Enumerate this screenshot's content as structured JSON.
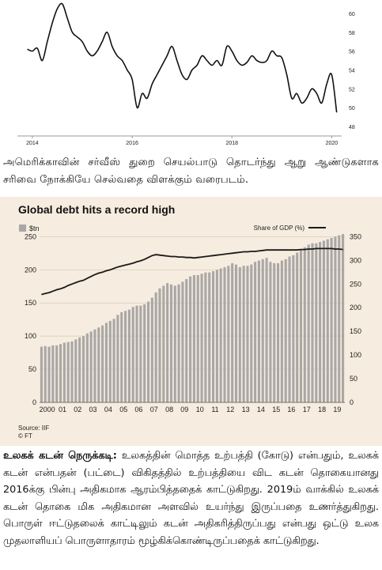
{
  "chart_data": [
    {
      "type": "line",
      "title": "",
      "x_ticks": [
        "2014",
        "2016",
        "2018",
        "2020"
      ],
      "y_ticks": [
        48,
        50,
        52,
        54,
        56,
        58,
        60
      ],
      "ylim": [
        47,
        61
      ],
      "xlim": [
        2013.7,
        2020.2
      ],
      "series": [
        {
          "name": "",
          "x": [
            2013.9,
            2014.0,
            2014.1,
            2014.2,
            2014.3,
            2014.4,
            2014.5,
            2014.6,
            2014.7,
            2014.8,
            2014.9,
            2015.0,
            2015.1,
            2015.2,
            2015.3,
            2015.4,
            2015.5,
            2015.6,
            2015.7,
            2015.8,
            2015.9,
            2016.0,
            2016.1,
            2016.2,
            2016.3,
            2016.4,
            2016.5,
            2016.6,
            2016.7,
            2016.8,
            2016.9,
            2017.0,
            2017.1,
            2017.2,
            2017.3,
            2017.4,
            2017.5,
            2017.6,
            2017.7,
            2017.8,
            2017.9,
            2018.0,
            2018.1,
            2018.2,
            2018.3,
            2018.4,
            2018.5,
            2018.6,
            2018.7,
            2018.8,
            2018.9,
            2019.0,
            2019.1,
            2019.2,
            2019.3,
            2019.4,
            2019.5,
            2019.6,
            2019.7,
            2019.8,
            2019.9,
            2020.0,
            2020.1
          ],
          "y": [
            56.2,
            56.0,
            56.3,
            55.0,
            57.0,
            59.0,
            60.5,
            61.0,
            59.5,
            58.0,
            57.5,
            57.0,
            56.0,
            55.5,
            56.0,
            57.0,
            58.0,
            56.5,
            55.5,
            55.0,
            54.0,
            53.0,
            50.0,
            51.5,
            51.0,
            52.5,
            53.5,
            54.5,
            55.5,
            56.5,
            55.0,
            53.5,
            53.0,
            54.0,
            54.5,
            55.5,
            55.0,
            54.5,
            55.0,
            54.5,
            56.5,
            56.0,
            55.0,
            54.5,
            54.8,
            55.5,
            55.0,
            54.8,
            55.0,
            56.0,
            55.5,
            55.3,
            53.5,
            51.0,
            51.5,
            50.5,
            51.0,
            52.0,
            51.5,
            50.5,
            52.5,
            53.5,
            49.5
          ]
        }
      ]
    },
    {
      "type": "bar",
      "title": "Global debt hits a record high",
      "legend": [
        "$tn",
        "Share of GDP (%)"
      ],
      "left_axis_ticks": [
        0,
        50,
        100,
        150,
        200,
        250
      ],
      "right_axis_ticks": [
        0,
        50,
        100,
        150,
        200,
        250,
        300,
        350
      ],
      "ylim": [
        0,
        260
      ],
      "xlabel_ticks": [
        "2000",
        "01",
        "02",
        "03",
        "04",
        "05",
        "06",
        "07",
        "08",
        "09",
        "10",
        "11",
        "12",
        "13",
        "14",
        "15",
        "16",
        "17",
        "18",
        "19"
      ],
      "source": "Source: IIF",
      "credit": "© FT",
      "bars_per_year": 4,
      "series": [
        {
          "name": "$tn",
          "values": [
            84,
            85,
            84,
            86,
            86,
            88,
            90,
            91,
            92,
            95,
            98,
            100,
            104,
            107,
            110,
            113,
            116,
            120,
            123,
            126,
            132,
            136,
            138,
            140,
            144,
            146,
            146,
            148,
            152,
            158,
            166,
            172,
            176,
            180,
            178,
            176,
            178,
            182,
            186,
            190,
            192,
            192,
            194,
            196,
            196,
            198,
            200,
            202,
            204,
            206,
            210,
            208,
            204,
            206,
            206,
            208,
            212,
            214,
            216,
            218,
            212,
            210,
            210,
            214,
            216,
            220,
            222,
            226,
            230,
            234,
            238,
            240,
            240,
            242,
            244,
            246,
            248,
            250,
            252,
            254
          ]
        },
        {
          "name": "Share of GDP (%)",
          "values": [
            228,
            230,
            232,
            235,
            238,
            240,
            243,
            247,
            250,
            253,
            256,
            258,
            262,
            266,
            270,
            273,
            275,
            278,
            280,
            283,
            286,
            288,
            290,
            292,
            294,
            297,
            299,
            302,
            306,
            310,
            312,
            311,
            310,
            309,
            308,
            308,
            307,
            307,
            306,
            306,
            305,
            306,
            307,
            308,
            309,
            310,
            311,
            312,
            313,
            314,
            315,
            316,
            317,
            318,
            318,
            319,
            319,
            320,
            321,
            322,
            322,
            322,
            322,
            322,
            322,
            322,
            322,
            322,
            323,
            323,
            324,
            324,
            325,
            325,
            325,
            325,
            325,
            324,
            324,
            323
          ]
        }
      ]
    }
  ],
  "caption1": "அமெரிக்காவின் சர்வீஸ் துறை செயல்பாடு தொடர்ந்து ஆறு ஆண்டுகளாக சரிவை நோக்கியே செல்வதை விளக்கும் வரைபடம்.",
  "caption2_lead": "உலகக் கடன் நெருக்கடி:",
  "caption2_body": " உலகத்தின் மொத்த உற்பத்தி (கோடு) என்பதும், உலகக் கடன் என்பதன் (பட்டை) விகிதத்தில் உற்பத்தியை விட கடன் தொகையானது 2016க்கு பின்பு அதிகமாக ஆரம்பித்ததைக் காட்டுகிறது. 2019ம் வாக்கில் உலகக் கடன் தொகை மிக அதிகமான அளவில் உயர்ந்து இருப்பதை உணர்த்துகிறது. பொருள் ஈட்டுதலைக் காட்டிலும் கடன் அதிகரித்திருப்பது என்பது ஒட்டு உலக முதலாளியப் பொருளாதாரம் மூழ்கிக்கொண்டிருப்பதைக் காட்டுகிறது.",
  "colors": {
    "bar": "#a9a7a6",
    "line": "#1a1a1a",
    "panel_bg": "#f6ecdf",
    "grid": "#d7ccbe"
  }
}
